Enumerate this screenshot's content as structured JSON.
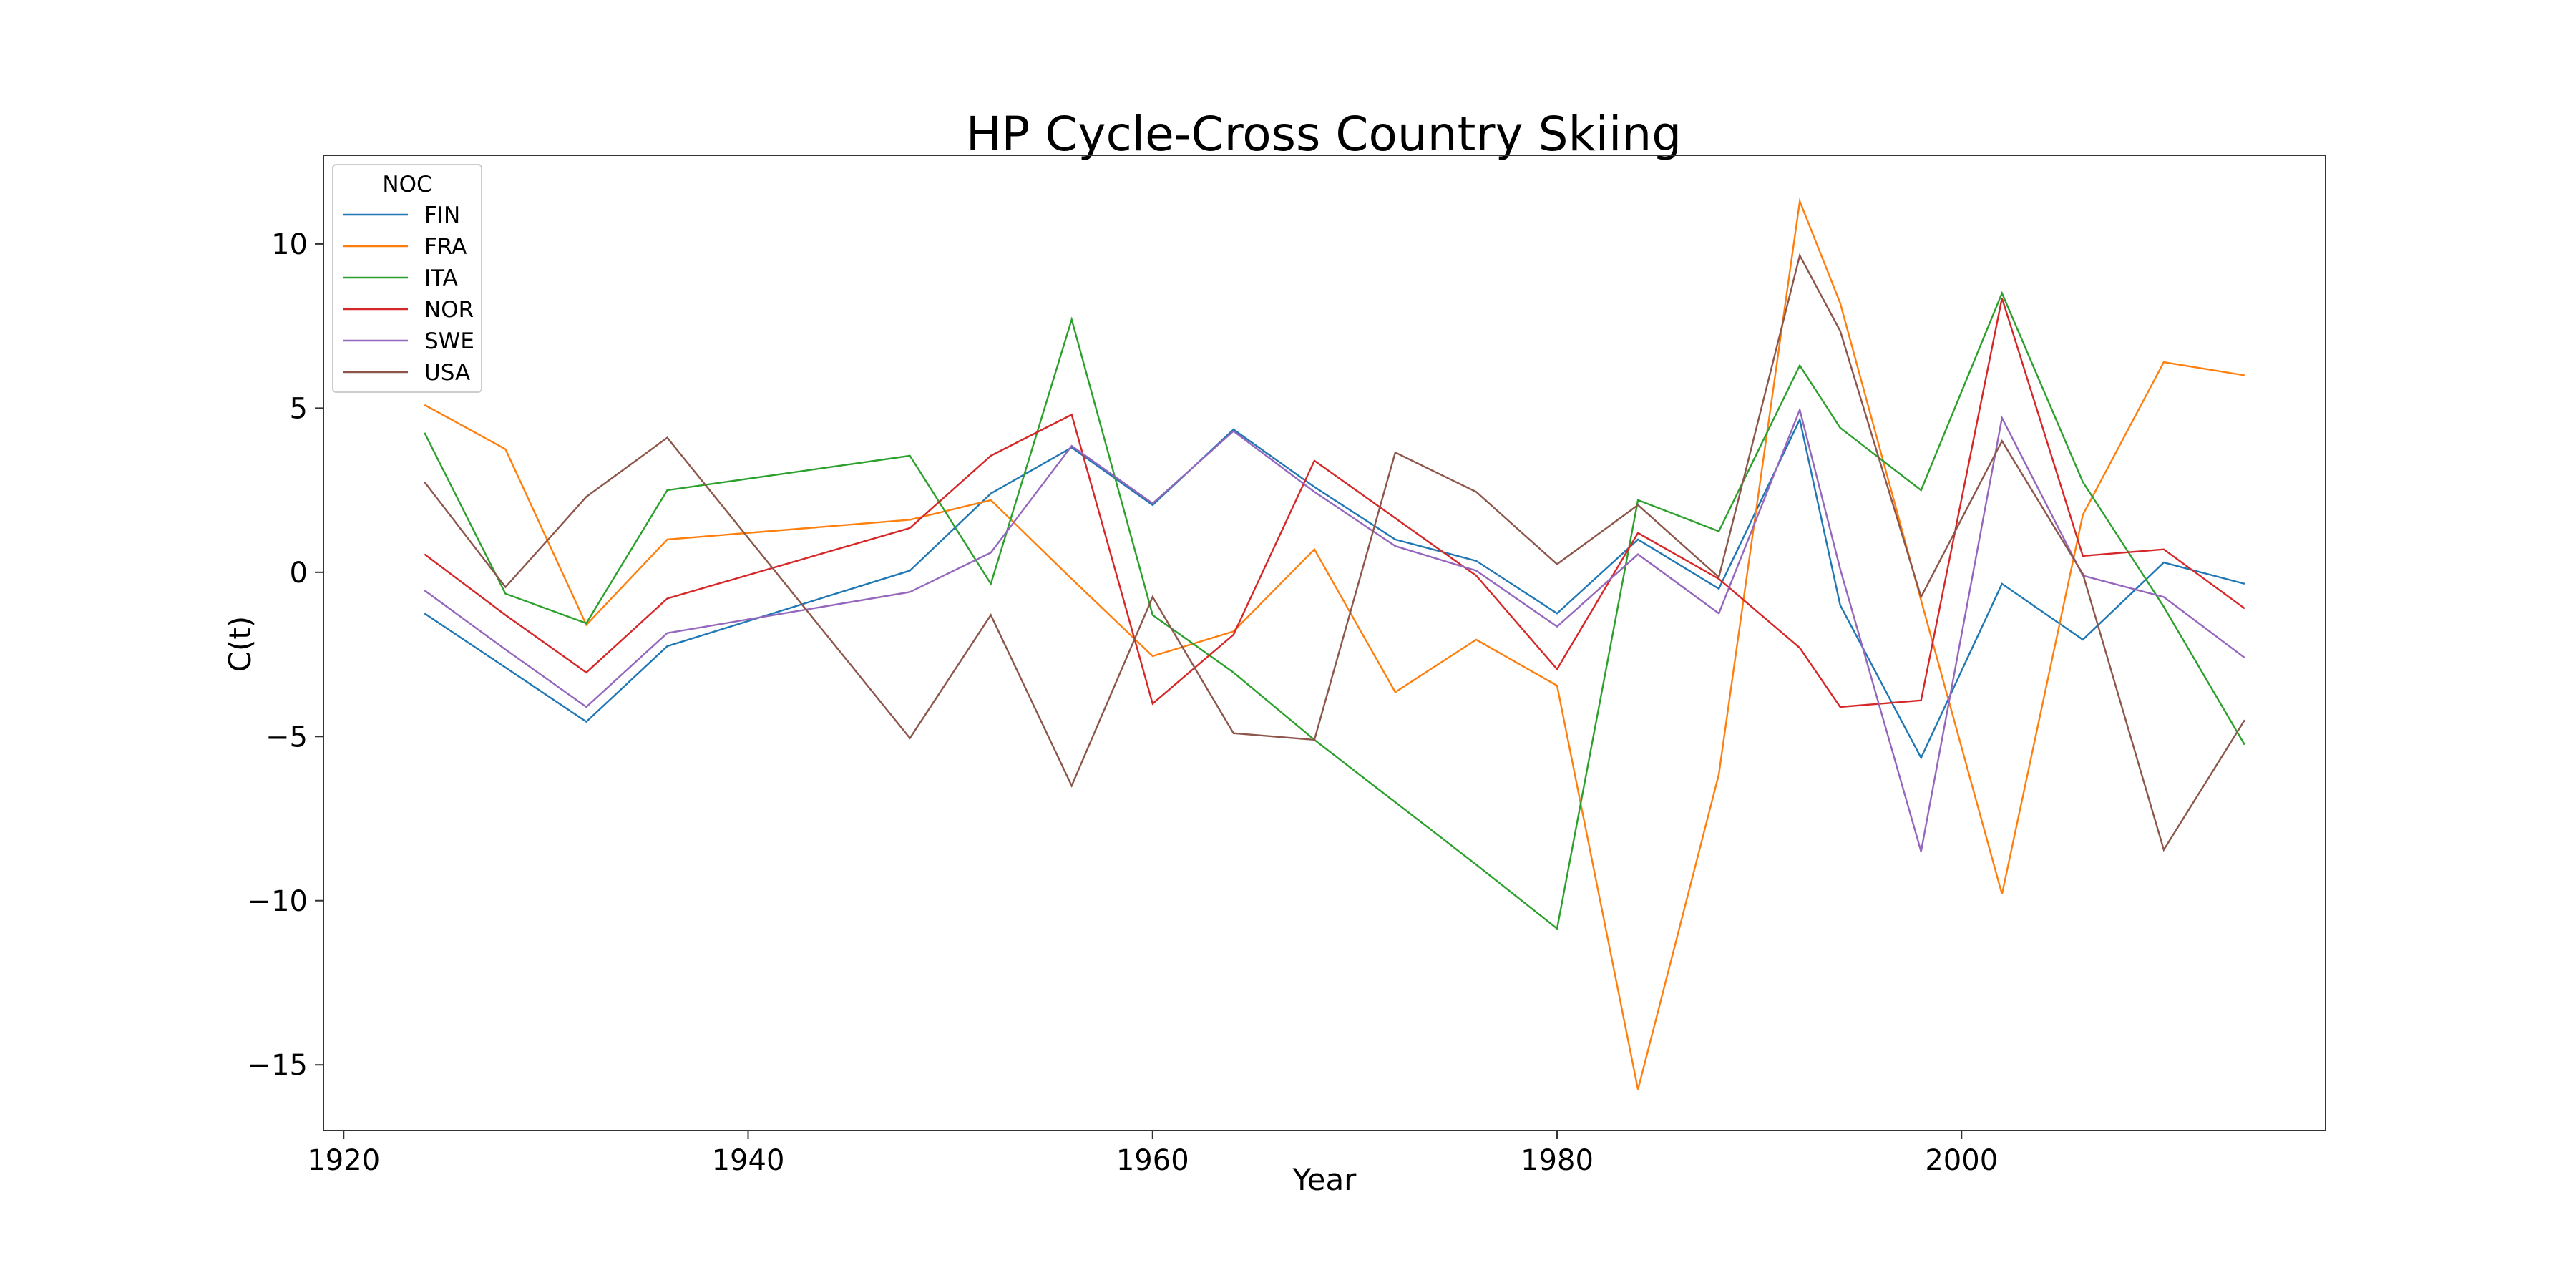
{
  "chart_data": {
    "type": "line",
    "title": "HP Cycle-Cross Country Skiing",
    "xlabel": "Year",
    "ylabel": "C(t)",
    "xlim": [
      1919,
      2018
    ],
    "ylim": [
      -17,
      12.7
    ],
    "xticks": [
      1920,
      1940,
      1960,
      1980,
      2000
    ],
    "yticks": [
      -15,
      -10,
      -5,
      0,
      5,
      10
    ],
    "grid": false,
    "legend": {
      "title": "NOC",
      "placement": "upper-left"
    },
    "x": [
      1924,
      1928,
      1932,
      1936,
      1948,
      1952,
      1956,
      1960,
      1964,
      1968,
      1972,
      1976,
      1980,
      1984,
      1988,
      1992,
      1994,
      1998,
      2002,
      2006,
      2010,
      2014
    ],
    "series": [
      {
        "name": "FIN",
        "color": "#1f77b4",
        "values": [
          -1.25,
          -2.9,
          -4.55,
          -2.25,
          0.05,
          2.4,
          3.8,
          2.05,
          4.35,
          2.6,
          1.0,
          0.35,
          -1.25,
          1.0,
          -0.5,
          4.65,
          -1.0,
          -5.65,
          -0.35,
          -2.05,
          0.3,
          -0.35
        ]
      },
      {
        "name": "FRA",
        "color": "#ff7f0e",
        "values": [
          5.1,
          3.75,
          -1.6,
          1.0,
          1.6,
          2.2,
          -0.2,
          -2.55,
          -1.8,
          0.7,
          -3.65,
          -2.05,
          -3.45,
          -15.75,
          -6.15,
          11.3,
          8.2,
          -0.85,
          -9.8,
          1.75,
          6.4,
          6.0
        ]
      },
      {
        "name": "ITA",
        "color": "#2ca02c",
        "values": [
          4.25,
          -0.65,
          -1.55,
          2.5,
          3.55,
          -0.35,
          7.7,
          -1.3,
          -3.05,
          -5.1,
          -7.0,
          -8.9,
          -10.85,
          2.2,
          1.25,
          6.3,
          4.4,
          2.5,
          8.5,
          2.75,
          -1.05,
          -5.25
        ]
      },
      {
        "name": "NOR",
        "color": "#d62728",
        "values": [
          0.55,
          -1.3,
          -3.05,
          -0.8,
          1.35,
          3.55,
          4.8,
          -4.0,
          -1.9,
          3.4,
          1.65,
          -0.1,
          -2.95,
          1.2,
          -0.2,
          -2.3,
          -4.1,
          -3.9,
          8.35,
          0.5,
          0.7,
          -1.1
        ]
      },
      {
        "name": "SWE",
        "color": "#9467bd",
        "values": [
          -0.55,
          -2.35,
          -4.1,
          -1.85,
          -0.6,
          0.6,
          3.85,
          2.1,
          4.3,
          2.45,
          0.8,
          0.05,
          -1.65,
          0.55,
          -1.25,
          4.95,
          0.1,
          -8.5,
          4.7,
          -0.1,
          -0.75,
          -2.6
        ]
      },
      {
        "name": "USA",
        "color": "#8c564b",
        "values": [
          2.75,
          -0.45,
          2.3,
          4.1,
          -5.05,
          -1.3,
          -6.5,
          -0.75,
          -4.9,
          -5.1,
          3.65,
          2.45,
          0.25,
          2.05,
          -0.15,
          9.65,
          7.35,
          -0.75,
          4.0,
          -0.05,
          -8.45,
          -4.5
        ]
      }
    ]
  }
}
